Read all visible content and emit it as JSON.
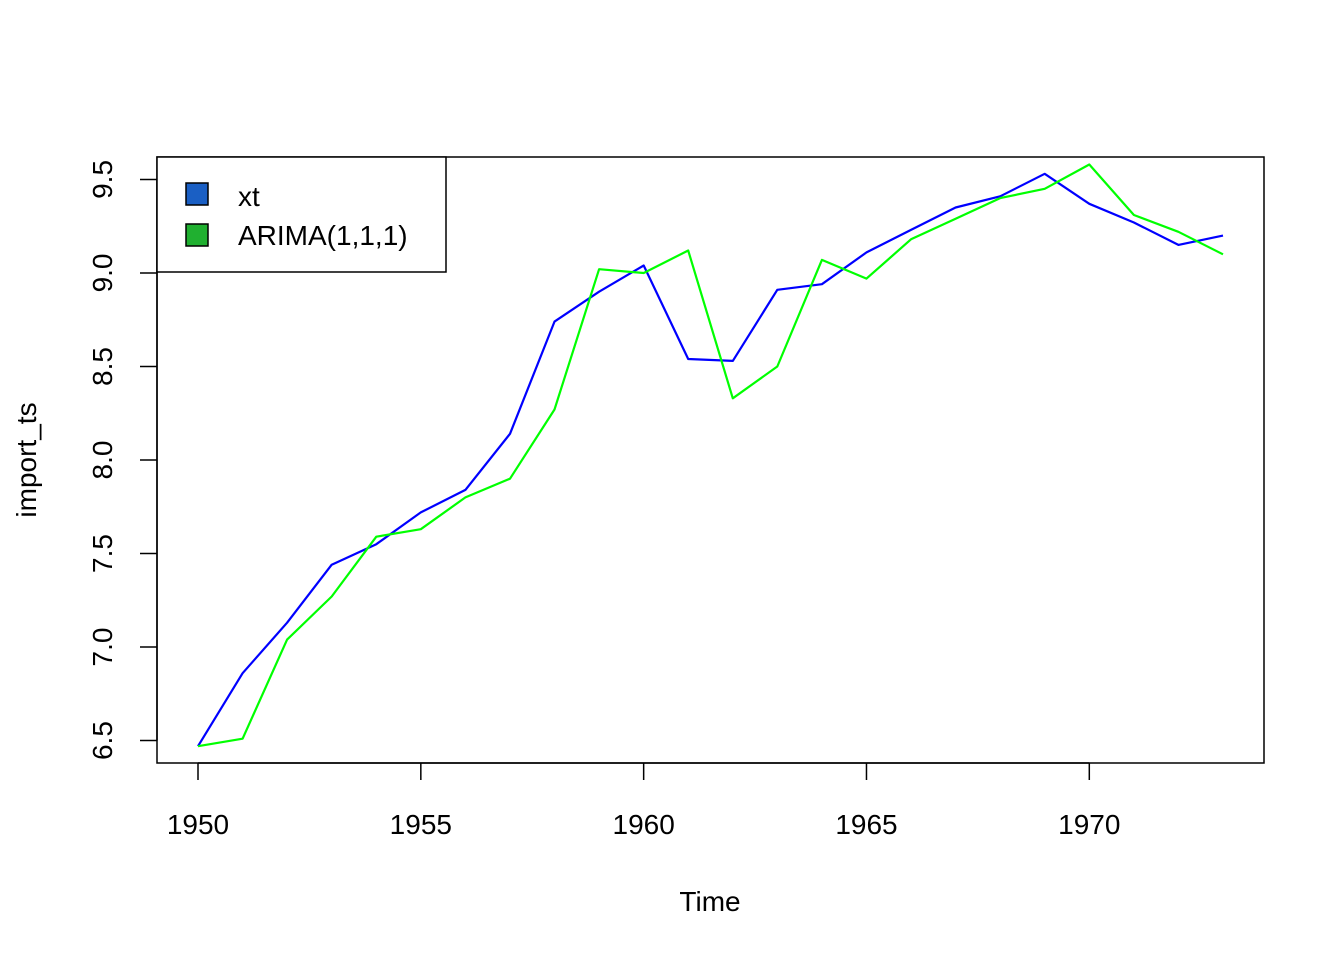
{
  "chart_data": {
    "type": "line",
    "title": "",
    "xlabel": "Time",
    "ylabel": "import_ts",
    "xlim": [
      1950,
      1973
    ],
    "ylim": [
      6.5,
      9.5
    ],
    "x_ticks": [
      "1950",
      "1955",
      "1960",
      "1965",
      "1970"
    ],
    "y_ticks": [
      "6.5",
      "7.0",
      "7.5",
      "8.0",
      "8.5",
      "9.0",
      "9.5"
    ],
    "x": [
      1950,
      1951,
      1952,
      1953,
      1954,
      1955,
      1956,
      1957,
      1958,
      1959,
      1960,
      1961,
      1962,
      1963,
      1964,
      1965,
      1966,
      1967,
      1968,
      1969,
      1970,
      1971,
      1972,
      1973
    ],
    "series": [
      {
        "name": "xt",
        "color": "#0000ff",
        "legend_color": "#1a5fc4",
        "values": [
          6.47,
          6.86,
          7.13,
          7.44,
          7.55,
          7.72,
          7.84,
          8.14,
          8.74,
          8.9,
          9.04,
          8.54,
          8.53,
          8.91,
          8.94,
          9.11,
          9.23,
          9.35,
          9.41,
          9.53,
          9.37,
          9.27,
          9.15,
          9.2
        ]
      },
      {
        "name": "ARIMA(1,1,1)",
        "color": "#00ff00",
        "legend_color": "#20b030",
        "values": [
          6.47,
          6.51,
          7.04,
          7.27,
          7.59,
          7.63,
          7.8,
          7.9,
          8.27,
          9.02,
          9.0,
          9.12,
          8.33,
          8.5,
          9.07,
          8.97,
          9.18,
          9.29,
          9.4,
          9.45,
          9.58,
          9.31,
          9.22,
          9.1
        ]
      }
    ],
    "legend_position": "top-left",
    "grid": false
  }
}
